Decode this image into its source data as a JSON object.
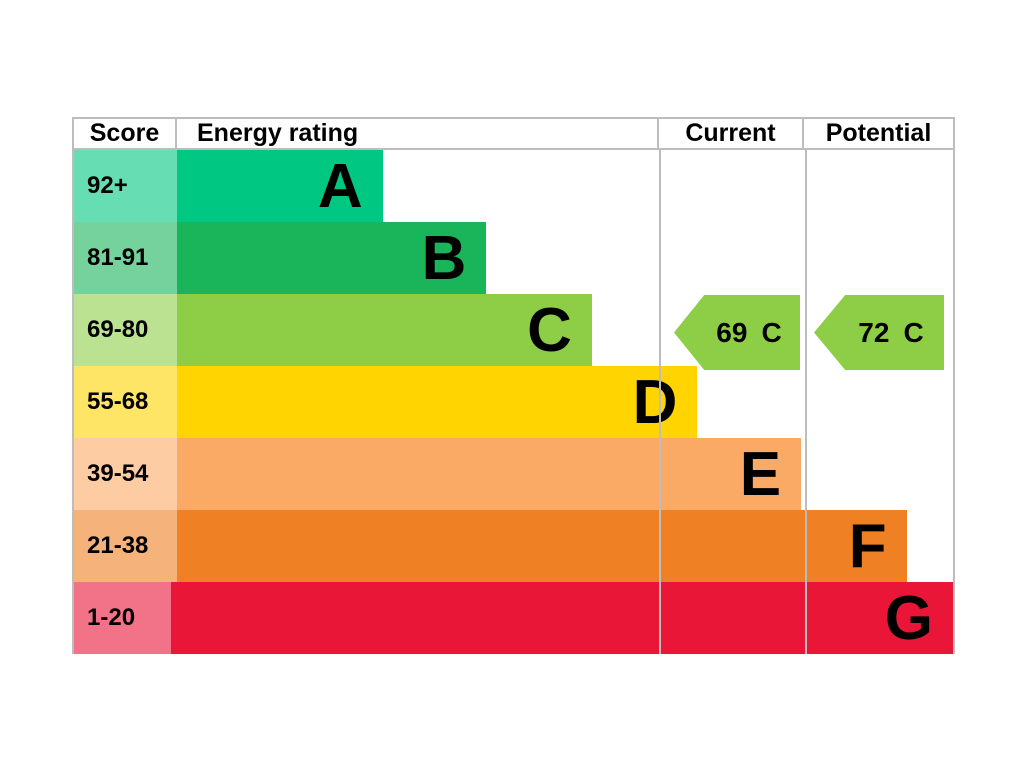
{
  "header": {
    "score": "Score",
    "energy_rating": "Energy rating",
    "current": "Current",
    "potential": "Potential"
  },
  "chart_data": {
    "type": "bar",
    "kind": "epc-energy-rating",
    "orientation": "horizontal",
    "bands": [
      {
        "letter": "A",
        "score_range": "92+",
        "color": "#00c781",
        "tint": "#66ddb3",
        "width_pct": 23.4
      },
      {
        "letter": "B",
        "score_range": "81-91",
        "color": "#1ab45a",
        "tint": "#76d29c",
        "width_pct": 35.2
      },
      {
        "letter": "C",
        "score_range": "69-80",
        "color": "#8dce46",
        "tint": "#bbe290",
        "width_pct": 47.2
      },
      {
        "letter": "D",
        "score_range": "55-68",
        "color": "#ffd400",
        "tint": "#ffe566",
        "width_pct": 59.2
      },
      {
        "letter": "E",
        "score_range": "39-54",
        "color": "#fbaa65",
        "tint": "#fdcca3",
        "width_pct": 71.0
      },
      {
        "letter": "F",
        "score_range": "21-38",
        "color": "#ef8023",
        "tint": "#f5b27b",
        "width_pct": 83.0
      },
      {
        "letter": "G",
        "score_range": "1-20",
        "color": "#e91638",
        "tint": "#f27388",
        "width_pct": 94.8
      }
    ],
    "markers": {
      "current": {
        "value": "69",
        "letter": "C",
        "color": "#8dce46"
      },
      "potential": {
        "value": "72",
        "letter": "C",
        "color": "#8dce46"
      }
    }
  }
}
